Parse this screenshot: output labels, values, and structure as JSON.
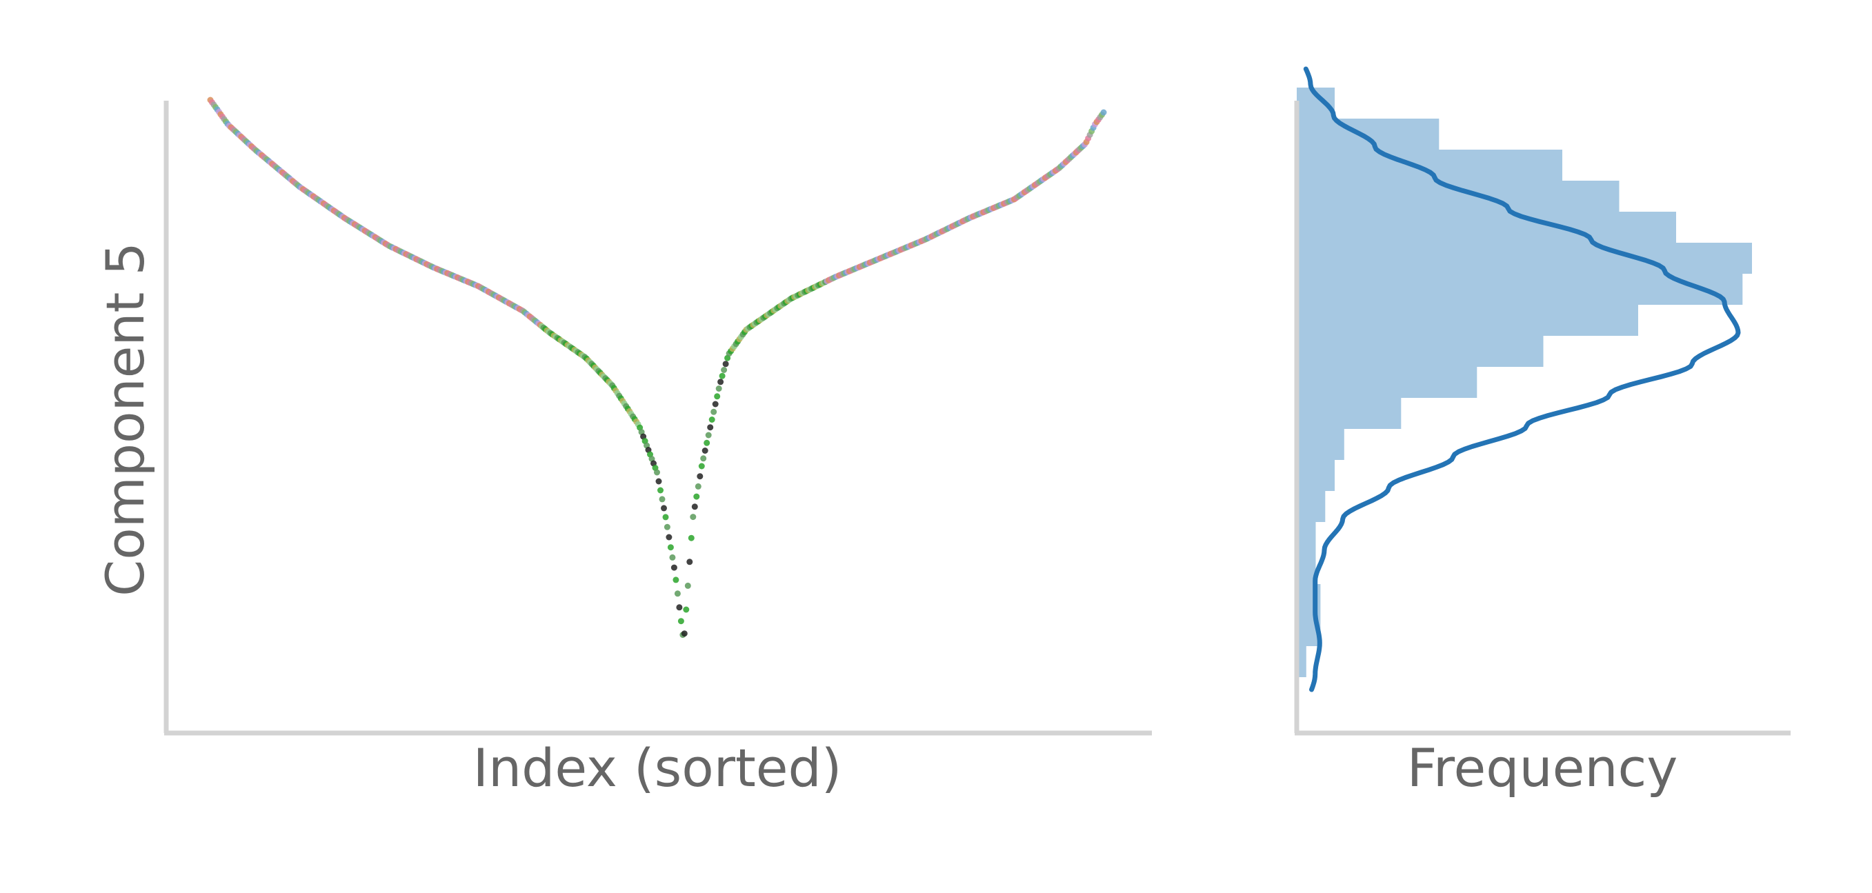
{
  "chart_data": [
    {
      "type": "scatter",
      "title": "",
      "xlabel": "Index (sorted)",
      "ylabel": "Component 5",
      "xlim": [
        0,
        1000
      ],
      "ylim": [
        -1.0,
        1.0
      ],
      "grid": false,
      "legend": "none",
      "x_ticks_visible": false,
      "y_ticks_visible": false,
      "point_colors": [
        "#d98e5a",
        "#e07b9a",
        "#a0a0a0",
        "#7fb86b",
        "#6aa6cc",
        "#c799d6",
        "#b8b25a",
        "#8fcf8f",
        "#5a9a5a",
        "#2aa52a",
        "#222222"
      ],
      "series": [
        {
          "name": "",
          "x": [
            0,
            20,
            50,
            100,
            150,
            200,
            250,
            300,
            350,
            380,
            420,
            450,
            480,
            500,
            510,
            520,
            530,
            540,
            550,
            560,
            570,
            580,
            600,
            650,
            700,
            750,
            800,
            850,
            900,
            950,
            980,
            990,
            1000
          ],
          "y": [
            0.9,
            0.82,
            0.74,
            0.62,
            0.52,
            0.43,
            0.36,
            0.3,
            0.22,
            0.15,
            0.07,
            -0.02,
            -0.15,
            -0.3,
            -0.45,
            -0.62,
            -0.85,
            -0.45,
            -0.28,
            -0.15,
            -0.02,
            0.08,
            0.16,
            0.26,
            0.33,
            0.39,
            0.45,
            0.52,
            0.58,
            0.68,
            0.76,
            0.82,
            0.86
          ]
        }
      ]
    },
    {
      "type": "bar",
      "orientation": "horizontal",
      "title": "",
      "xlabel": "Frequency",
      "ylabel": "",
      "ylim": [
        -1.0,
        1.0
      ],
      "grid": false,
      "legend": "none",
      "x_ticks_visible": false,
      "y_ticks_visible": false,
      "bar_color": "#a6c8e2",
      "line_color": "#2474b5",
      "bin_edges": [
        -0.96,
        -0.86,
        -0.76,
        -0.66,
        -0.56,
        -0.46,
        -0.36,
        -0.26,
        -0.16,
        -0.06,
        0.04,
        0.14,
        0.24,
        0.34,
        0.44,
        0.54,
        0.64,
        0.74,
        0.84,
        0.94
      ],
      "counts": [
        2,
        5,
        5,
        4,
        4,
        6,
        8,
        10,
        22,
        38,
        52,
        72,
        94,
        96,
        80,
        68,
        56,
        30,
        8
      ],
      "kde": {
        "y": [
          -1.25,
          -1.1,
          -0.95,
          -0.85,
          -0.75,
          -0.65,
          -0.55,
          -0.45,
          -0.35,
          -0.25,
          -0.15,
          -0.05,
          0.05,
          0.15,
          0.25,
          0.35,
          0.45,
          0.55,
          0.65,
          0.75,
          0.85,
          0.95,
          1.05,
          1.15,
          1.25
        ],
        "density": [
          0,
          1,
          4,
          5,
          4,
          4,
          6,
          10,
          20,
          34,
          50,
          68,
          86,
          96,
          93,
          80,
          64,
          46,
          30,
          17,
          8,
          3,
          1,
          0.3,
          0
        ]
      }
    }
  ]
}
